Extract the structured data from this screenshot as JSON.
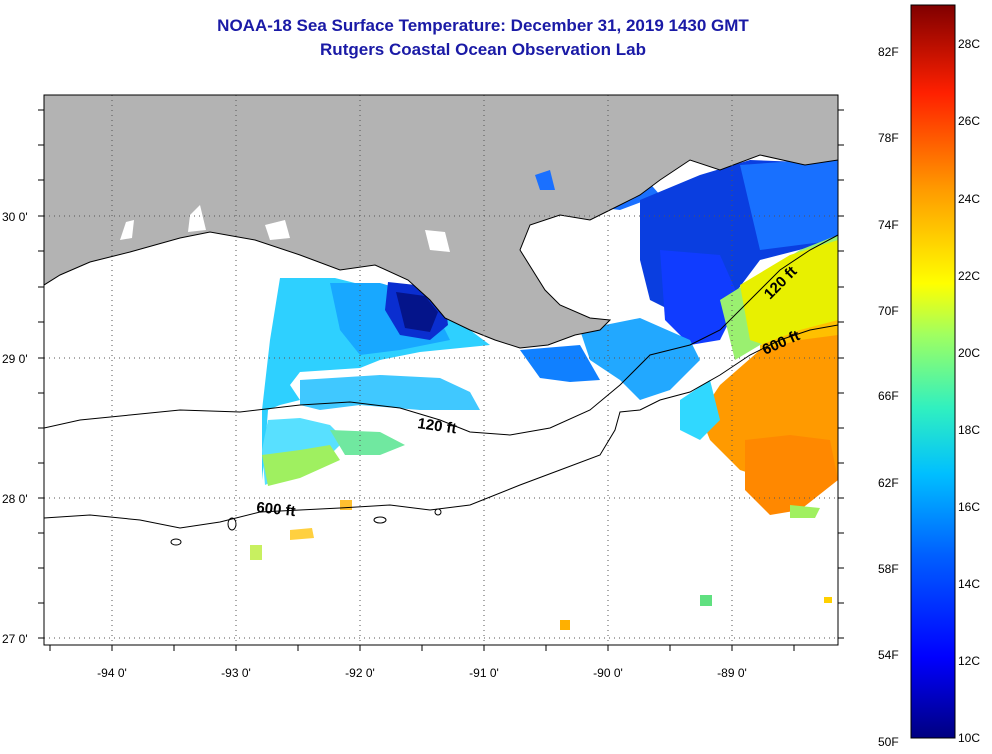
{
  "header": {
    "title": "NOAA-18 Sea Surface Temperature:  December 31, 2019 1430 GMT",
    "subtitle": "Rutgers Coastal Ocean Observation Lab"
  },
  "map": {
    "lon_labels": [
      "-94 0'",
      "-93 0'",
      "-92 0'",
      "-91 0'",
      "-90 0'",
      "-89 0'"
    ],
    "lat_labels": [
      "30 0'",
      "29 0'",
      "28 0'",
      "27 0'"
    ],
    "contour_labels": {
      "inner_120": "120 ft",
      "inner_600": "600 ft",
      "east_120": "120 ft",
      "east_600": "600 ft"
    },
    "colors": {
      "land": "#b3b3b3",
      "no_data": "#ffffff",
      "grid": "#555555"
    }
  },
  "colorbar": {
    "fahrenheit_labels": [
      "82F",
      "78F",
      "74F",
      "70F",
      "66F",
      "62F",
      "58F",
      "54F",
      "50F"
    ],
    "celsius_labels": [
      "28C",
      "26C",
      "24C",
      "22C",
      "20C",
      "18C",
      "16C",
      "14C",
      "12C",
      "10C"
    ],
    "range_celsius": [
      10,
      29.5
    ],
    "colormap": "jet"
  }
}
